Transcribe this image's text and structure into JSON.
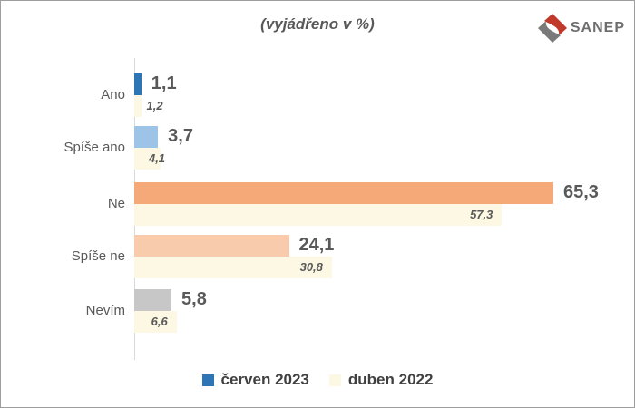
{
  "logo": {
    "text": "SANEP"
  },
  "chart_data": {
    "type": "bar",
    "orientation": "horizontal",
    "title": "(vyjádřeno v %)",
    "unit": "%",
    "categories": [
      "Ano",
      "Spíše ano",
      "Ne",
      "Spíše ne",
      "Nevím"
    ],
    "series": [
      {
        "name": "červen 2023",
        "values": [
          1.1,
          3.7,
          65.3,
          24.1,
          5.8
        ],
        "labels": [
          "1,1",
          "3,7",
          "65,3",
          "24,1",
          "5,8"
        ],
        "legend_color": "#2E75B6",
        "bar_colors": [
          "#2E75B6",
          "#9DC3E6",
          "#F5A878",
          "#F8CBAD",
          "#C7C7C7"
        ]
      },
      {
        "name": "duben 2022",
        "values": [
          1.2,
          4.1,
          57.3,
          30.8,
          6.6
        ],
        "labels": [
          "1,2",
          "4,1",
          "57,3",
          "30,8",
          "6,6"
        ],
        "legend_color": "#FCF8E3",
        "bar_colors": [
          "#FCF8E3",
          "#FCF8E3",
          "#FCF8E3",
          "#FCF8E3",
          "#FCF8E3"
        ]
      }
    ],
    "xlim": [
      0,
      70
    ],
    "grid": false,
    "legend_position": "bottom"
  },
  "colors": {
    "logo_red": "#C0392B",
    "logo_gray": "#7A7A7A",
    "axis_line": "#D9D9D9"
  }
}
